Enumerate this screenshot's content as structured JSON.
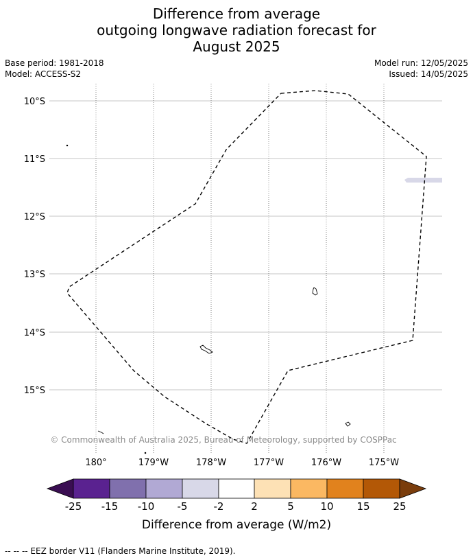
{
  "title": {
    "line1": "Difference from average",
    "line2": "outgoing longwave radiation forecast for",
    "line3": "August 2025"
  },
  "meta": {
    "base_period": "Base period: 1981-2018",
    "model": "Model: ACCESS-S2",
    "model_run": "Model run: 12/05/2025",
    "issued": "Issued: 14/05/2025"
  },
  "map": {
    "lat_labels": [
      "10°S",
      "11°S",
      "12°S",
      "13°S",
      "14°S",
      "15°S"
    ],
    "lon_labels": [
      "180°",
      "179°W",
      "178°W",
      "177°W",
      "176°W",
      "175°W"
    ],
    "attribution": "© Commonwealth of Australia 2025, Bureau of Meteorology, supported by COSPPac",
    "shaded_anomaly_color": "#d8d8e8"
  },
  "colorbar": {
    "label": "Difference from average (W/m2)",
    "ticks": [
      "-25",
      "-15",
      "-10",
      "-5",
      "-2",
      "2",
      "5",
      "10",
      "15",
      "25"
    ],
    "extend_low_color": "#3a0e52",
    "extend_high_color": "#7a3d0c",
    "colors": [
      "#5a2290",
      "#8070ad",
      "#b1a9d4",
      "#d8d8e8",
      "#ffffff",
      "#fde1b5",
      "#fbb862",
      "#e1821d",
      "#b35806"
    ]
  },
  "footer": {
    "legend_text": "--  --  -- EEZ border V11 (Flanders Marine Institute, 2019)."
  }
}
